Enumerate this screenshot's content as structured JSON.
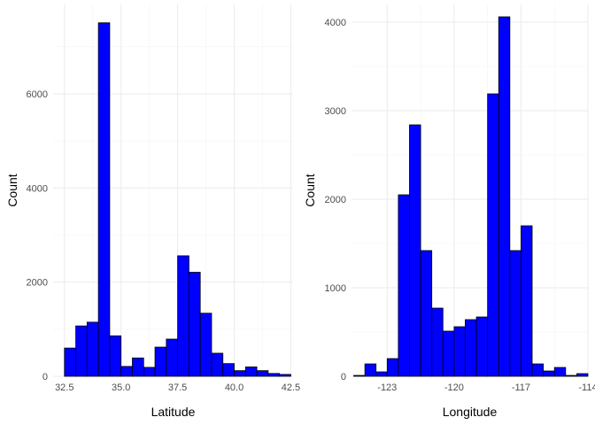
{
  "chart_data": [
    {
      "type": "bar",
      "title": "",
      "xlabel": "Latitude",
      "ylabel": "Count",
      "xlim": [
        32.0,
        42.6
      ],
      "ylim": [
        0,
        7900
      ],
      "x_ticks": [
        32.5,
        35.0,
        37.5,
        40.0,
        42.5
      ],
      "x_tick_labels": [
        "32.5",
        "35.0",
        "37.5",
        "40.0",
        "42.5"
      ],
      "y_ticks": [
        0,
        2000,
        4000,
        6000
      ],
      "y_tick_labels": [
        "0",
        "2000",
        "4000",
        "6000"
      ],
      "bin_width": 0.5,
      "bin_starts": [
        32.5,
        33.0,
        33.5,
        34.0,
        34.5,
        35.0,
        35.5,
        36.0,
        36.5,
        37.0,
        37.5,
        38.0,
        38.5,
        39.0,
        39.5,
        40.0,
        40.5,
        41.0,
        41.5,
        42.0
      ],
      "values": [
        600,
        1070,
        1150,
        7510,
        860,
        210,
        390,
        190,
        620,
        790,
        2560,
        2210,
        1340,
        490,
        270,
        120,
        200,
        120,
        60,
        40
      ],
      "grid": true
    },
    {
      "type": "bar",
      "title": "",
      "xlabel": "Longitude",
      "ylabel": "Count",
      "xlim": [
        -124.6,
        -114.0
      ],
      "ylim": [
        0,
        4200
      ],
      "x_ticks": [
        -123,
        -120,
        -117,
        -114
      ],
      "x_tick_labels": [
        "-123",
        "-120",
        "-117",
        "-114"
      ],
      "y_ticks": [
        0,
        1000,
        2000,
        3000,
        4000
      ],
      "y_tick_labels": [
        "0",
        "1000",
        "2000",
        "3000",
        "4000"
      ],
      "bin_width": 0.5,
      "bin_starts": [
        -124.5,
        -124.0,
        -123.5,
        -123.0,
        -122.5,
        -122.0,
        -121.5,
        -121.0,
        -120.5,
        -120.0,
        -119.5,
        -119.0,
        -118.5,
        -118.0,
        -117.5,
        -117.0,
        -116.5,
        -116.0,
        -115.5,
        -115.0,
        -114.5
      ],
      "values": [
        10,
        140,
        50,
        200,
        2050,
        2840,
        1420,
        770,
        510,
        560,
        640,
        670,
        3190,
        4060,
        1420,
        1700,
        140,
        60,
        100,
        10,
        30
      ],
      "grid": true
    }
  ]
}
